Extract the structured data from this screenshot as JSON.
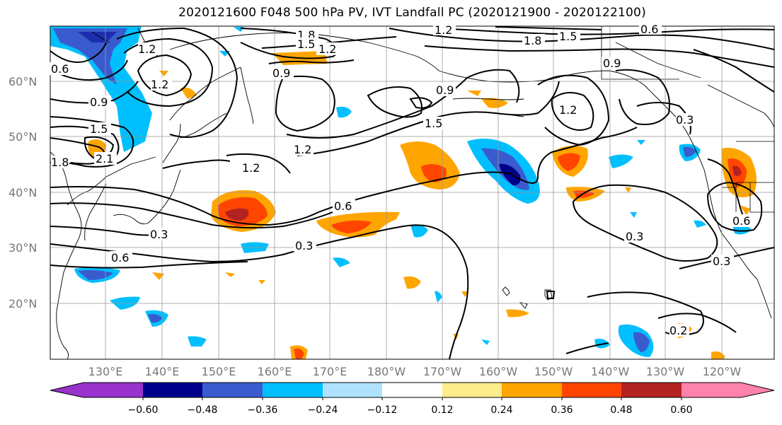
{
  "title": "2020121600 F048 500 hPa PV, IVT Landfall PC (2020121900 - 2020122100)",
  "map": {
    "lat_labels": [
      "60°N",
      "50°N",
      "40°N",
      "30°N",
      "20°N"
    ],
    "lon_labels": [
      "130°E",
      "140°E",
      "150°E",
      "160°E",
      "170°E",
      "180°W",
      "170°W",
      "160°W",
      "150°W",
      "140°W",
      "130°W",
      "120°W"
    ],
    "contour_labels": [
      "1.8",
      "1.5",
      "1.2",
      "0.9",
      "0.6",
      "0.9",
      "1.5",
      "2.1",
      "1.8",
      "1.2",
      "1.2",
      "1.8",
      "1.5",
      "1.2",
      "0.9",
      "1.5",
      "1.2",
      "0.6",
      "0.9",
      "1.2",
      "1.2",
      "0.6",
      "0.3",
      "0.3",
      "0.6",
      "0.3",
      "0.3",
      "0.3",
      "0.2",
      "0.6"
    ]
  },
  "colorbar": {
    "ticks": [
      "−0.60",
      "−0.48",
      "−0.36",
      "−0.24",
      "−0.12",
      "0.12",
      "0.24",
      "0.36",
      "0.48",
      "0.60"
    ],
    "colors": [
      "#9932cc",
      "#00008b",
      "#3a5bcd",
      "#00bfff",
      "#b0e2ff",
      "#ffffff",
      "#ffec8b",
      "#ffa500",
      "#ff4500",
      "#b22222",
      "#ff82ab"
    ]
  }
}
